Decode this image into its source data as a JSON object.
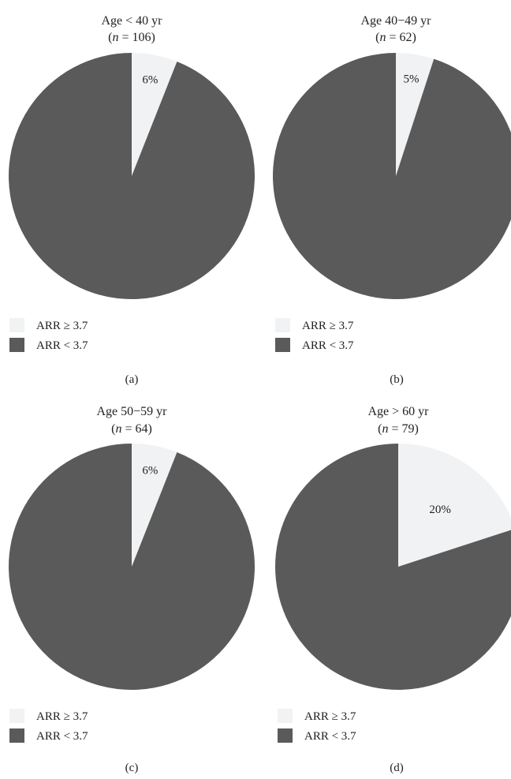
{
  "colors": {
    "high": "#f1f2f3",
    "low": "#5a5a5a"
  },
  "chart_data": [
    {
      "type": "pie",
      "panel": "(a)",
      "title": "Age < 40 yr",
      "n_label": "n",
      "n_value": "= 106)",
      "slices": [
        {
          "label": "ARR ≥ 3.7",
          "value": 6,
          "display": "6%"
        },
        {
          "label": "ARR < 3.7",
          "value": 94
        }
      ],
      "legend": [
        "ARR ≥ 3.7",
        "ARR < 3.7"
      ]
    },
    {
      "type": "pie",
      "panel": "(b)",
      "title": "Age 40−49 yr",
      "n_label": "n",
      "n_value": "= 62)",
      "slices": [
        {
          "label": "ARR ≥ 3.7",
          "value": 5,
          "display": "5%"
        },
        {
          "label": "ARR < 3.7",
          "value": 95
        }
      ],
      "legend": [
        "ARR ≥ 3.7",
        "ARR < 3.7"
      ]
    },
    {
      "type": "pie",
      "panel": "(c)",
      "title": "Age 50−59 yr",
      "n_label": "n",
      "n_value": "= 64)",
      "slices": [
        {
          "label": "ARR ≥ 3.7",
          "value": 6,
          "display": "6%"
        },
        {
          "label": "ARR < 3.7",
          "value": 94
        }
      ],
      "legend": [
        "ARR ≥ 3.7",
        "ARR < 3.7"
      ]
    },
    {
      "type": "pie",
      "panel": "(d)",
      "title": "Age > 60 yr",
      "n_label": "n",
      "n_value": "= 79)",
      "slices": [
        {
          "label": "ARR ≥ 3.7",
          "value": 20,
          "display": "20%"
        },
        {
          "label": "ARR < 3.7",
          "value": 80
        }
      ],
      "legend": [
        "ARR ≥ 3.7",
        "ARR < 3.7"
      ]
    }
  ]
}
